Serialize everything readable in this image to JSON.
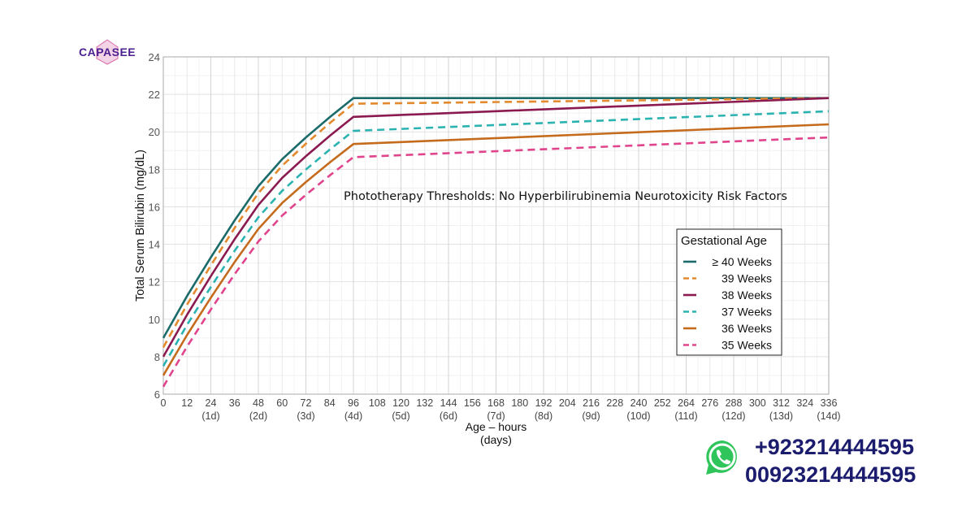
{
  "logo": {
    "text": "CAPASEE"
  },
  "contact": {
    "icon": "whatsapp-icon",
    "phone_1": "+923214444595",
    "phone_2": "00923214444595",
    "color": "#1c1c6e"
  },
  "chart_data": {
    "type": "line",
    "annotation": "Phototherapy Thresholds:  No Hyperbilirubinemia Neurotoxicity Risk Factors",
    "xlabel": "Age – hours",
    "xlabel_sub": "(days)",
    "ylabel": "Total Serum Bilirubin (mg/dL)",
    "xlim": [
      0,
      336
    ],
    "ylim": [
      6,
      24
    ],
    "x_ticks": [
      0,
      12,
      24,
      36,
      48,
      60,
      72,
      84,
      96,
      108,
      120,
      132,
      144,
      156,
      168,
      180,
      192,
      204,
      216,
      228,
      240,
      252,
      264,
      276,
      288,
      300,
      312,
      324,
      336
    ],
    "x_day_labels": [
      {
        "x": 24,
        "label": "(1d)"
      },
      {
        "x": 48,
        "label": "(2d)"
      },
      {
        "x": 72,
        "label": "(3d)"
      },
      {
        "x": 96,
        "label": "(4d)"
      },
      {
        "x": 120,
        "label": "(5d)"
      },
      {
        "x": 144,
        "label": "(6d)"
      },
      {
        "x": 168,
        "label": "(7d)"
      },
      {
        "x": 192,
        "label": "(8d)"
      },
      {
        "x": 216,
        "label": "(9d)"
      },
      {
        "x": 240,
        "label": "(10d)"
      },
      {
        "x": 264,
        "label": "(11d)"
      },
      {
        "x": 288,
        "label": "(12d)"
      },
      {
        "x": 312,
        "label": "(13d)"
      },
      {
        "x": 336,
        "label": "(14d)"
      }
    ],
    "y_ticks": [
      6,
      8,
      10,
      12,
      14,
      16,
      18,
      20,
      22,
      24
    ],
    "grid": true,
    "legend": {
      "title": "Gestational Age",
      "placement": "right"
    },
    "x": [
      0,
      12,
      24,
      36,
      48,
      60,
      72,
      84,
      96,
      336
    ],
    "series": [
      {
        "name": "≥ 40 Weeks",
        "color": "#1b6b6a",
        "dash": false,
        "values": [
          9,
          11.24,
          13.3,
          15.27,
          17.1,
          18.54,
          19.7,
          20.78,
          21.8,
          21.8
        ]
      },
      {
        "name": "39 Weeks",
        "color": "#e38a2e",
        "dash": true,
        "values": [
          8.5,
          10.78,
          12.87,
          14.87,
          16.73,
          18.19,
          19.37,
          20.46,
          21.5,
          21.8
        ]
      },
      {
        "name": "38 Weeks",
        "color": "#8a1a50",
        "dash": false,
        "values": [
          8,
          10.24,
          12.3,
          14.27,
          16.1,
          17.54,
          18.7,
          19.78,
          20.8,
          21.8
        ]
      },
      {
        "name": "37 Weeks",
        "color": "#2bb3b1",
        "dash": true,
        "values": [
          7.5,
          9.7,
          11.72,
          13.65,
          15.44,
          16.85,
          17.99,
          19.05,
          20.05,
          21.1
        ]
      },
      {
        "name": "36 Weeks",
        "color": "#c56b1d",
        "dash": false,
        "values": [
          7,
          9.16,
          11.15,
          13.05,
          14.82,
          16.2,
          17.32,
          18.36,
          19.35,
          20.4
        ]
      },
      {
        "name": "35 Weeks",
        "color": "#e0448d",
        "dash": true,
        "values": [
          6.4,
          8.54,
          10.52,
          12.4,
          14.15,
          15.53,
          16.64,
          17.67,
          18.65,
          19.7
        ]
      }
    ]
  }
}
